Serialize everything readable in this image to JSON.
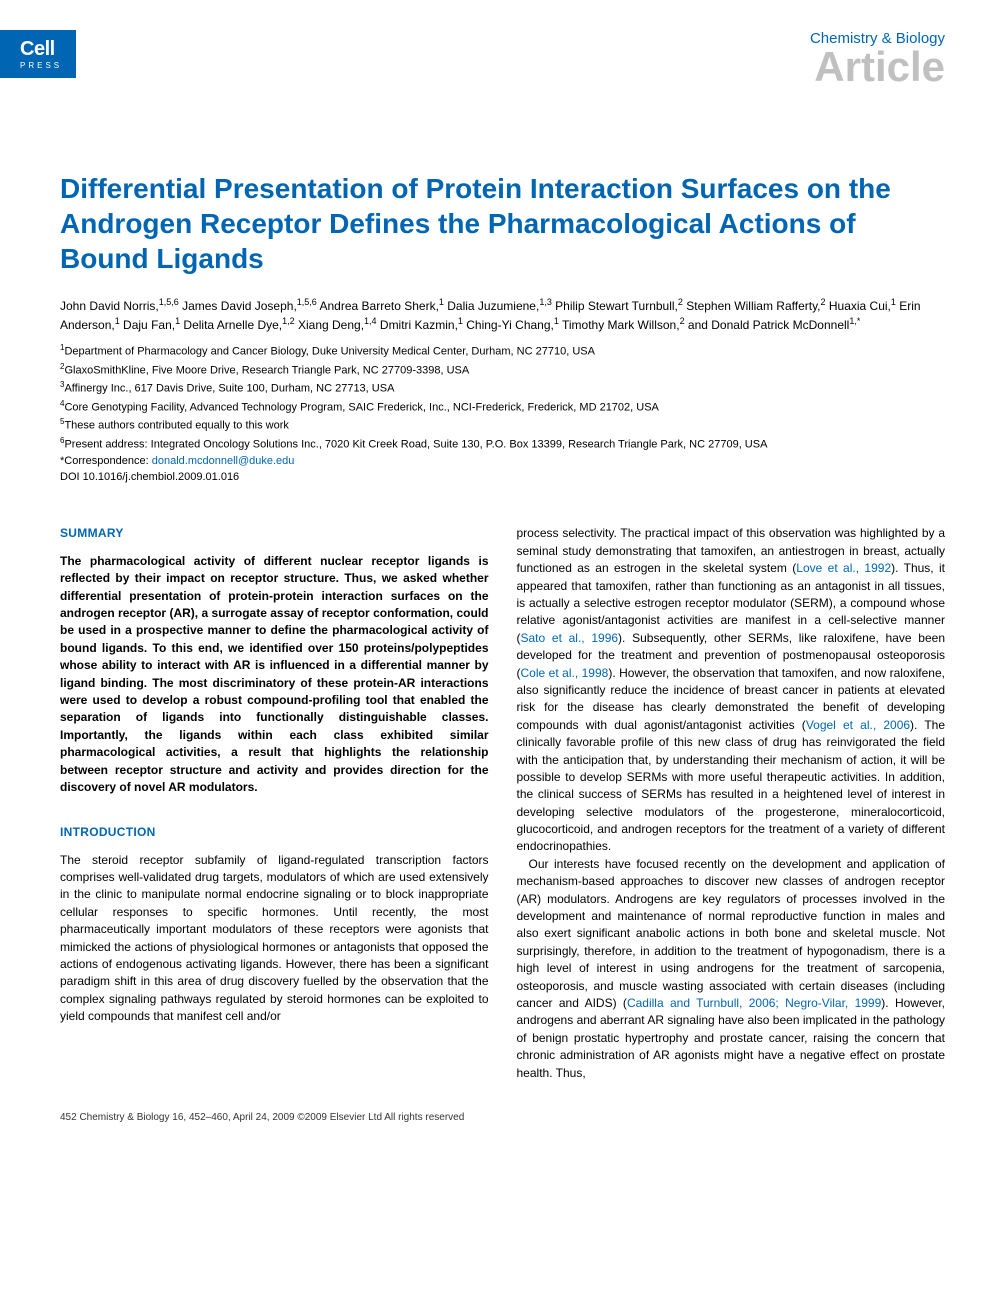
{
  "brand": {
    "name": "Cell",
    "sub": "PRESS"
  },
  "header": {
    "journal": "Chemistry & Biology",
    "type": "Article"
  },
  "title": "Differential Presentation of Protein Interaction Surfaces on the Androgen Receptor Defines the Pharmacological Actions of Bound Ligands",
  "authors_html": "John David Norris,<sup>1,5,6</sup> James David Joseph,<sup>1,5,6</sup> Andrea Barreto Sherk,<sup>1</sup> Dalia Juzumiene,<sup>1,3</sup> Philip Stewart Turnbull,<sup>2</sup> Stephen William Rafferty,<sup>2</sup> Huaxia Cui,<sup>1</sup> Erin Anderson,<sup>1</sup> Daju Fan,<sup>1</sup> Delita Arnelle Dye,<sup>1,2</sup> Xiang Deng,<sup>1,4</sup> Dmitri Kazmin,<sup>1</sup> Ching-Yi Chang,<sup>1</sup> Timothy Mark Willson,<sup>2</sup> and Donald Patrick McDonnell<sup>1,*</sup>",
  "affiliations_html": "<sup>1</sup>Department of Pharmacology and Cancer Biology, Duke University Medical Center, Durham, NC 27710, USA<br><sup>2</sup>GlaxoSmithKline, Five Moore Drive, Research Triangle Park, NC 27709-3398, USA<br><sup>3</sup>Affinergy Inc., 617 Davis Drive, Suite 100, Durham, NC 27713, USA<br><sup>4</sup>Core Genotyping Facility, Advanced Technology Program, SAIC Frederick, Inc., NCI-Frederick, Frederick, MD 21702, USA<br><sup>5</sup>These authors contributed equally to this work<br><sup>6</sup>Present address: Integrated Oncology Solutions Inc., 7020 Kit Creek Road, Suite 130, P.O. Box 13399, Research Triangle Park, NC 27709, USA<br>*Correspondence: <a href=\"#\">donald.mcdonnell@duke.edu</a><br>DOI 10.1016/j.chembiol.2009.01.016",
  "summary_heading": "SUMMARY",
  "summary": "The pharmacological activity of different nuclear receptor ligands is reflected by their impact on receptor structure. Thus, we asked whether differential presentation of protein-protein interaction surfaces on the androgen receptor (AR), a surrogate assay of receptor conformation, could be used in a prospective manner to define the pharmacological activity of bound ligands. To this end, we identified over 150 proteins/polypeptides whose ability to interact with AR is influenced in a differential manner by ligand binding. The most discriminatory of these protein-AR interactions were used to develop a robust compound-profiling tool that enabled the separation of ligands into functionally distinguishable classes. Importantly, the ligands within each class exhibited similar pharmacological activities, a result that highlights the relationship between receptor structure and activity and provides direction for the discovery of novel AR modulators.",
  "intro_heading": "INTRODUCTION",
  "intro_left": "The steroid receptor subfamily of ligand-regulated transcription factors comprises well-validated drug targets, modulators of which are used extensively in the clinic to manipulate normal endocrine signaling or to block inappropriate cellular responses to specific hormones. Until recently, the most pharmaceutically important modulators of these receptors were agonists that mimicked the actions of physiological hormones or antagonists that opposed the actions of endogenous activating ligands. However, there has been a significant paradigm shift in this area of drug discovery fuelled by the observation that the complex signaling pathways regulated by steroid hormones can be exploited to yield compounds that manifest cell and/or",
  "right_p1_html": "process selectivity. The practical impact of this observation was highlighted by a seminal study demonstrating that tamoxifen, an antiestrogen in breast, actually functioned as an estrogen in the skeletal system (<span class=\"ref\">Love et al., 1992</span>). Thus, it appeared that tamoxifen, rather than functioning as an antagonist in all tissues, is actually a selective estrogen receptor modulator (SERM), a compound whose relative agonist/antagonist activities are manifest in a cell-selective manner (<span class=\"ref\">Sato et al., 1996</span>). Subsequently, other SERMs, like raloxifene, have been developed for the treatment and prevention of postmenopausal osteoporosis (<span class=\"ref\">Cole et al., 1998</span>). However, the observation that tamoxifen, and now raloxifene, also significantly reduce the incidence of breast cancer in patients at elevated risk for the disease has clearly demonstrated the benefit of developing compounds with dual agonist/antagonist activities (<span class=\"ref\">Vogel et al., 2006</span>). The clinically favorable profile of this new class of drug has reinvigorated the field with the anticipation that, by understanding their mechanism of action, it will be possible to develop SERMs with more useful therapeutic activities. In addition, the clinical success of SERMs has resulted in a heightened level of interest in developing selective modulators of the progesterone, mineralocorticoid, glucocorticoid, and androgen receptors for the treatment of a variety of different endocrinopathies.",
  "right_p2_html": "Our interests have focused recently on the development and application of mechanism-based approaches to discover new classes of androgen receptor (AR) modulators. Androgens are key regulators of processes involved in the development and maintenance of normal reproductive function in males and also exert significant anabolic actions in both bone and skeletal muscle. Not surprisingly, therefore, in addition to the treatment of hypogonadism, there is a high level of interest in using androgens for the treatment of sarcopenia, osteoporosis, and muscle wasting associated with certain diseases (including cancer and AIDS) (<span class=\"ref\">Cadilla and Turnbull, 2006; Negro-Vilar, 1999</span>). However, androgens and aberrant AR signaling have also been implicated in the pathology of benign prostatic hypertrophy and prostate cancer, raising the concern that chronic administration of AR agonists might have a negative effect on prostate health. Thus,",
  "footer": "452   Chemistry & Biology 16, 452–460, April 24, 2009 ©2009 Elsevier Ltd All rights reserved",
  "colors": {
    "brand_blue": "#0066b3",
    "article_gray": "#c0c0c0"
  }
}
